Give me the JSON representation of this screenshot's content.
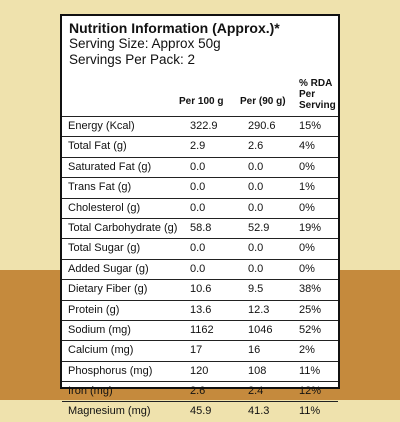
{
  "panel": {
    "title": "Nutrition Information (Approx.)*",
    "serving_size": "Serving Size: Approx 50g",
    "servings_per_pack": "Servings Per Pack: 2"
  },
  "columns": {
    "per100": "Per 100 g",
    "per90": "Per (90 g)",
    "rda": "% RDA Per Serving"
  },
  "rows": [
    {
      "name": "Energy (Kcal)",
      "per100": "322.9",
      "per90": "290.6",
      "rda": "15%"
    },
    {
      "name": "Total Fat (g)",
      "per100": "2.9",
      "per90": "2.6",
      "rda": "4%"
    },
    {
      "name": "Saturated Fat (g)",
      "per100": "0.0",
      "per90": "0.0",
      "rda": "0%"
    },
    {
      "name": "Trans Fat (g)",
      "per100": "0.0",
      "per90": "0.0",
      "rda": "1%"
    },
    {
      "name": "Cholesterol (g)",
      "per100": "0.0",
      "per90": "0.0",
      "rda": "0%"
    },
    {
      "name": "Total Carbohydrate (g)",
      "per100": "58.8",
      "per90": "52.9",
      "rda": "19%"
    },
    {
      "name": "Total Sugar (g)",
      "per100": "0.0",
      "per90": "0.0",
      "rda": "0%"
    },
    {
      "name": "Added Sugar (g)",
      "per100": "0.0",
      "per90": "0.0",
      "rda": "0%"
    },
    {
      "name": "Dietary Fiber (g)",
      "per100": "10.6",
      "per90": "9.5",
      "rda": "38%"
    },
    {
      "name": "Protein (g)",
      "per100": "13.6",
      "per90": "12.3",
      "rda": "25%"
    },
    {
      "name": "Sodium (mg)",
      "per100": "1162",
      "per90": "1046",
      "rda": "52%"
    },
    {
      "name": "Calcium (mg)",
      "per100": "17",
      "per90": "16",
      "rda": "2%"
    },
    {
      "name": "Phosphorus (mg)",
      "per100": "120",
      "per90": "108",
      "rda": "11%"
    },
    {
      "name": "Iron (mg)",
      "per100": "2.6",
      "per90": "2.4",
      "rda": "12%"
    },
    {
      "name": "Magnesium (mg)",
      "per100": "45.9",
      "per90": "41.3",
      "rda": "11%"
    }
  ],
  "colors": {
    "background_top": "#efe2ad",
    "background_bottom": "#c58a3d",
    "panel": "#ffffff",
    "text": "#111111"
  }
}
